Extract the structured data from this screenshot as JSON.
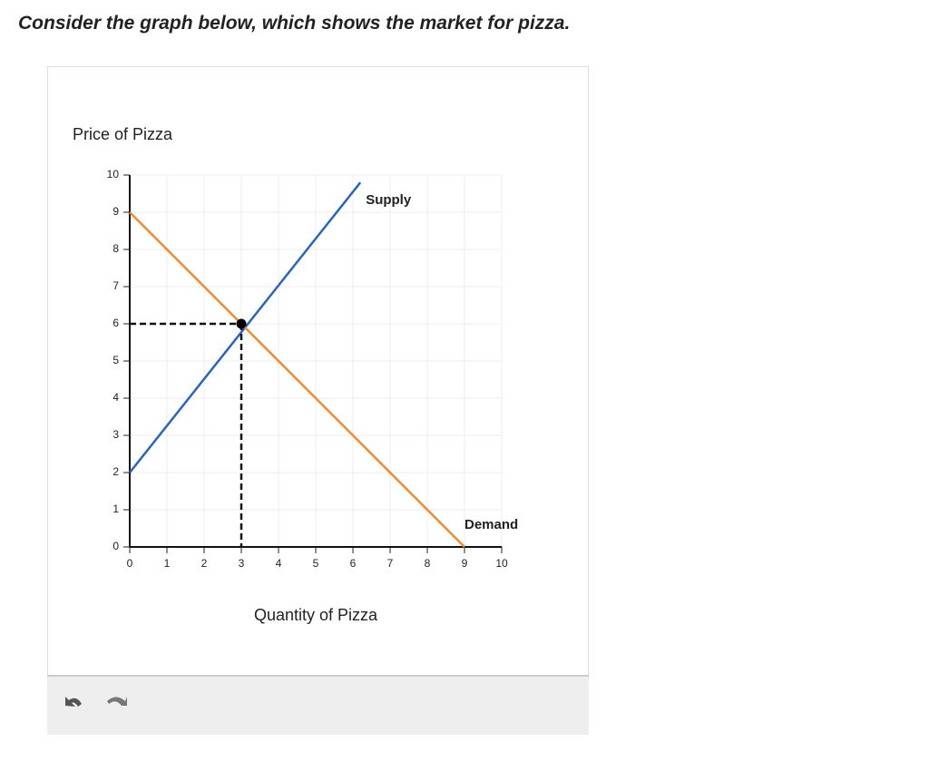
{
  "question": "Consider the graph below, which shows the market for pizza.",
  "chart_data": {
    "type": "line",
    "x_label": "Quantity of Pizza",
    "y_label": "Price of Pizza",
    "xlim": [
      0,
      10
    ],
    "ylim": [
      0,
      10
    ],
    "xticks": [
      0,
      1,
      2,
      3,
      4,
      5,
      6,
      7,
      8,
      9,
      10
    ],
    "yticks": [
      0,
      1,
      2,
      3,
      4,
      5,
      6,
      7,
      8,
      9,
      10
    ],
    "grid": true,
    "series": [
      {
        "name": "Supply",
        "color": "#2b63bd",
        "x": [
          0,
          6.2
        ],
        "values": [
          2,
          9.8
        ]
      },
      {
        "name": "Demand",
        "color": "#f08a2e",
        "x": [
          0,
          9
        ],
        "values": [
          9,
          0
        ]
      }
    ],
    "equilibrium": {
      "x": 3,
      "y": 6
    }
  }
}
